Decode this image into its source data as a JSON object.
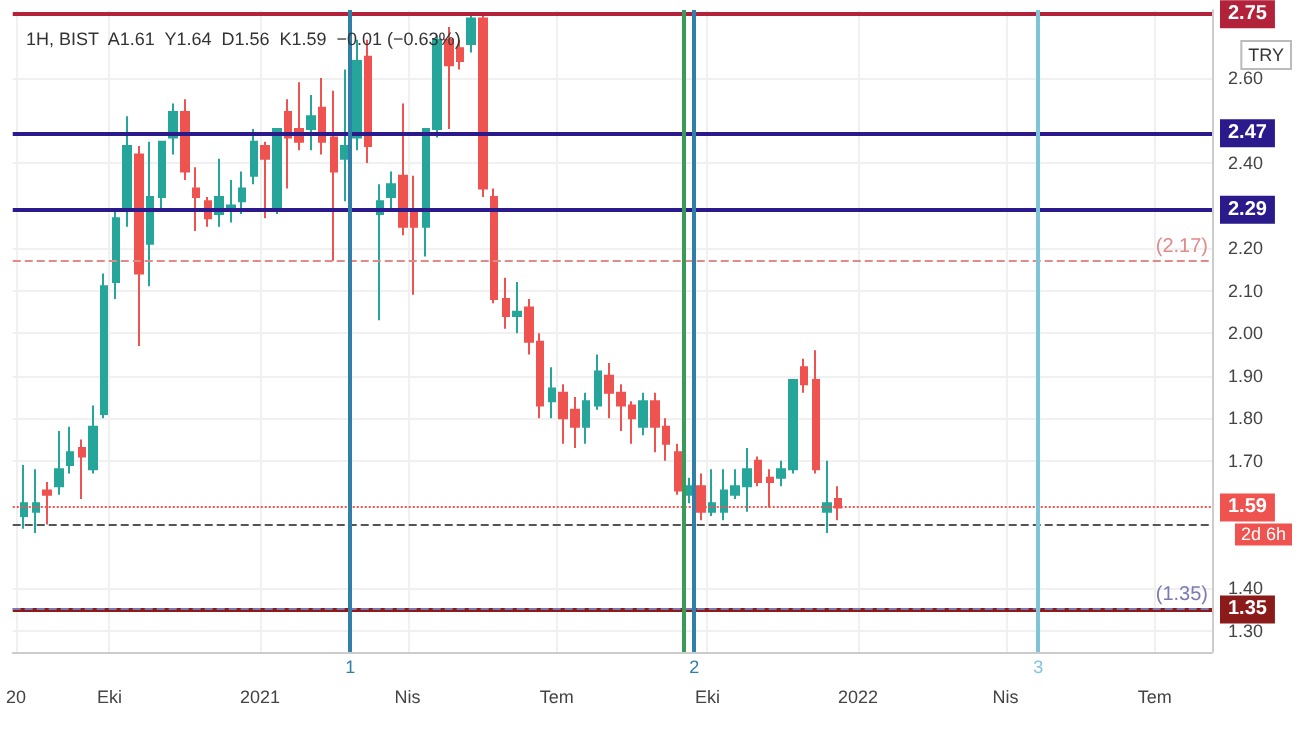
{
  "chart_data": {
    "type": "candlestick",
    "title": "1H, BIST  A1.61  Y1.64  D1.56  K1.59  −0.01 (−0.63%)",
    "x": [
      "2020-08-10",
      "2020-08-17",
      "2020-08-24",
      "2020-08-31",
      "2020-09-07",
      "2020-09-14",
      "2020-09-21",
      "2020-09-28",
      "2020-10-05",
      "2020-10-12",
      "2020-10-19",
      "2020-10-26",
      "2020-11-02",
      "2020-11-09",
      "2020-11-16",
      "2020-11-23",
      "2020-11-30",
      "2020-12-07",
      "2020-12-14",
      "2020-12-21",
      "2020-12-28",
      "2021-01-04",
      "2021-01-11",
      "2021-01-18",
      "2021-01-25",
      "2021-02-01",
      "2021-02-08",
      "2021-02-15",
      "2021-02-22",
      "2021-03-01",
      "2021-03-08",
      "2021-03-15",
      "2021-03-22",
      "2021-03-29",
      "2021-04-05",
      "2021-04-12",
      "2021-04-19",
      "2021-04-26",
      "2021-05-03",
      "2021-05-10",
      "2021-05-17",
      "2021-05-24",
      "2021-05-31",
      "2021-06-07",
      "2021-06-14",
      "2021-06-21",
      "2021-06-28",
      "2021-07-05",
      "2021-07-12",
      "2021-07-19",
      "2021-07-26",
      "2021-08-02",
      "2021-08-09",
      "2021-08-16",
      "2021-08-23",
      "2021-08-30",
      "2021-09-06",
      "2021-09-13",
      "2021-09-20",
      "2021-09-27",
      "2021-10-04",
      "2021-10-11",
      "2021-10-18",
      "2021-10-25",
      "2021-11-01",
      "2021-11-08",
      "2021-11-15",
      "2021-11-22",
      "2021-11-29",
      "2021-12-06",
      "2021-12-13",
      "2021-12-20"
    ],
    "ohlc": [
      [
        1.57,
        1.69,
        1.54,
        1.6
      ],
      [
        1.58,
        1.68,
        1.53,
        1.6
      ],
      [
        1.63,
        1.65,
        1.55,
        1.62
      ],
      [
        1.64,
        1.77,
        1.62,
        1.68
      ],
      [
        1.69,
        1.78,
        1.67,
        1.72
      ],
      [
        1.73,
        1.75,
        1.61,
        1.71
      ],
      [
        1.68,
        1.83,
        1.67,
        1.78
      ],
      [
        1.81,
        2.14,
        1.8,
        2.11
      ],
      [
        2.12,
        2.29,
        2.08,
        2.27
      ],
      [
        2.29,
        2.51,
        2.25,
        2.44
      ],
      [
        2.42,
        2.44,
        1.97,
        2.14
      ],
      [
        2.21,
        2.45,
        2.11,
        2.32
      ],
      [
        2.32,
        2.45,
        2.29,
        2.45
      ],
      [
        2.46,
        2.54,
        2.42,
        2.52
      ],
      [
        2.52,
        2.55,
        2.36,
        2.38
      ],
      [
        2.34,
        2.39,
        2.24,
        2.32
      ],
      [
        2.31,
        2.32,
        2.25,
        2.27
      ],
      [
        2.28,
        2.41,
        2.25,
        2.32
      ],
      [
        2.29,
        2.36,
        2.26,
        2.3
      ],
      [
        2.31,
        2.38,
        2.28,
        2.34
      ],
      [
        2.37,
        2.48,
        2.35,
        2.45
      ],
      [
        2.44,
        2.45,
        2.27,
        2.41
      ],
      [
        2.29,
        2.48,
        2.28,
        2.48
      ],
      [
        2.52,
        2.55,
        2.34,
        2.46
      ],
      [
        2.48,
        2.59,
        2.43,
        2.45
      ],
      [
        2.48,
        2.56,
        2.43,
        2.51
      ],
      [
        2.53,
        2.6,
        2.42,
        2.45
      ],
      [
        2.46,
        2.57,
        2.17,
        2.38
      ],
      [
        2.41,
        2.62,
        2.31,
        2.44
      ],
      [
        2.46,
        2.69,
        2.43,
        2.64
      ],
      [
        2.65,
        2.69,
        2.4,
        2.44
      ],
      [
        2.28,
        2.35,
        2.03,
        2.31
      ],
      [
        2.32,
        2.38,
        2.29,
        2.35
      ],
      [
        2.37,
        2.54,
        2.23,
        2.25
      ],
      [
        2.29,
        2.37,
        2.09,
        2.25
      ],
      [
        2.25,
        2.48,
        2.18,
        2.48
      ],
      [
        2.48,
        2.7,
        2.46,
        2.69
      ],
      [
        2.69,
        2.72,
        2.48,
        2.63
      ],
      [
        2.67,
        2.69,
        2.62,
        2.64
      ],
      [
        2.68,
        2.75,
        2.66,
        2.74
      ],
      [
        2.74,
        2.75,
        2.32,
        2.34
      ],
      [
        2.32,
        2.34,
        2.07,
        2.08
      ],
      [
        2.08,
        2.13,
        2.01,
        2.04
      ],
      [
        2.04,
        2.12,
        2.0,
        2.05
      ],
      [
        2.06,
        2.08,
        1.95,
        1.98
      ],
      [
        1.98,
        2.0,
        1.8,
        1.83
      ],
      [
        1.84,
        1.92,
        1.8,
        1.87
      ],
      [
        1.86,
        1.88,
        1.74,
        1.8
      ],
      [
        1.82,
        1.85,
        1.73,
        1.78
      ],
      [
        1.78,
        1.86,
        1.74,
        1.84
      ],
      [
        1.83,
        1.95,
        1.82,
        1.91
      ],
      [
        1.9,
        1.93,
        1.8,
        1.86
      ],
      [
        1.86,
        1.88,
        1.77,
        1.83
      ],
      [
        1.83,
        1.84,
        1.74,
        1.8
      ],
      [
        1.78,
        1.86,
        1.76,
        1.84
      ],
      [
        1.84,
        1.86,
        1.72,
        1.78
      ],
      [
        1.78,
        1.8,
        1.7,
        1.74
      ],
      [
        1.72,
        1.74,
        1.62,
        1.63
      ],
      [
        1.62,
        1.66,
        1.6,
        1.64
      ],
      [
        1.64,
        1.67,
        1.56,
        1.58
      ],
      [
        1.58,
        1.68,
        1.57,
        1.6
      ],
      [
        1.58,
        1.68,
        1.56,
        1.63
      ],
      [
        1.62,
        1.68,
        1.61,
        1.64
      ],
      [
        1.64,
        1.73,
        1.58,
        1.68
      ],
      [
        1.7,
        1.71,
        1.64,
        1.65
      ],
      [
        1.66,
        1.68,
        1.59,
        1.65
      ],
      [
        1.66,
        1.7,
        1.64,
        1.68
      ],
      [
        1.68,
        1.89,
        1.67,
        1.89
      ],
      [
        1.92,
        1.94,
        1.86,
        1.88
      ],
      [
        1.89,
        1.96,
        1.67,
        1.68
      ],
      [
        1.58,
        1.7,
        1.53,
        1.6
      ],
      [
        1.61,
        1.64,
        1.56,
        1.59
      ]
    ],
    "colors": [
      "#26a69a",
      "#26a69a",
      "#ef5350",
      "#26a69a",
      "#26a69a",
      "#ef5350",
      "#26a69a",
      "#26a69a",
      "#26a69a",
      "#26a69a",
      "#ef5350",
      "#26a69a",
      "#26a69a",
      "#26a69a",
      "#ef5350",
      "#ef5350",
      "#ef5350",
      "#26a69a",
      "#26a69a",
      "#26a69a",
      "#26a69a",
      "#ef5350",
      "#26a69a",
      "#ef5350",
      "#ef5350",
      "#26a69a",
      "#ef5350",
      "#ef5350",
      "#26a69a",
      "#26a69a",
      "#ef5350",
      "#26a69a",
      "#26a69a",
      "#ef5350",
      "#ef5350",
      "#26a69a",
      "#26a69a",
      "#ef5350",
      "#ef5350",
      "#26a69a",
      "#ef5350",
      "#ef5350",
      "#ef5350",
      "#26a69a",
      "#ef5350",
      "#ef5350",
      "#26a69a",
      "#ef5350",
      "#ef5350",
      "#26a69a",
      "#26a69a",
      "#ef5350",
      "#ef5350",
      "#ef5350",
      "#26a69a",
      "#ef5350",
      "#ef5350",
      "#ef5350",
      "#26a69a",
      "#ef5350",
      "#26a69a",
      "#26a69a",
      "#26a69a",
      "#26a69a",
      "#ef5350",
      "#ef5350",
      "#26a69a",
      "#26a69a",
      "#ef5350",
      "#ef5350",
      "#26a69a",
      "#ef5350"
    ],
    "xlim": [
      "2020-08-03",
      "2022-08-05"
    ],
    "xticks": [
      {
        "value": "2020-08-05",
        "label": "20"
      },
      {
        "value": "2020-10-01",
        "label": "Eki"
      },
      {
        "value": "2021-01-01",
        "label": "2021"
      },
      {
        "value": "2021-04-01",
        "label": "Nis"
      },
      {
        "value": "2021-07-01",
        "label": "Tem"
      },
      {
        "value": "2021-10-01",
        "label": "Eki"
      },
      {
        "value": "2022-01-01",
        "label": "2022"
      },
      {
        "value": "2022-04-01",
        "label": "Nis"
      },
      {
        "value": "2022-07-01",
        "label": "Tem"
      }
    ],
    "ylim": [
      1.25,
      2.76
    ],
    "yticks": [
      {
        "value": 1.3,
        "label": "1.30"
      },
      {
        "value": 1.4,
        "label": "1.40"
      },
      {
        "value": 1.7,
        "label": "1.70"
      },
      {
        "value": 1.8,
        "label": "1.80"
      },
      {
        "value": 1.9,
        "label": "1.90"
      },
      {
        "value": 2.0,
        "label": "2.00"
      },
      {
        "value": 2.1,
        "label": "2.10"
      },
      {
        "value": 2.2,
        "label": "2.20"
      },
      {
        "value": 2.4,
        "label": "2.40"
      },
      {
        "value": 2.6,
        "label": "2.60"
      }
    ],
    "ref_lines": [
      {
        "axis": "y",
        "value": 2.75,
        "label": "2.75",
        "color": "#b2223a"
      },
      {
        "axis": "y",
        "value": 2.47,
        "label": "2.47",
        "color": "#2a1a8c"
      },
      {
        "axis": "y",
        "value": 2.29,
        "label": "2.29",
        "color": "#2a1a8c"
      },
      {
        "axis": "y",
        "value": 2.17,
        "label": "(2.17)",
        "color": "#e08a8a",
        "line_style": "dashed"
      },
      {
        "axis": "y",
        "value": 1.59,
        "label": "1.59",
        "color": "#ef5350",
        "line_style": "dotted"
      },
      {
        "axis": "y",
        "value": 1.55,
        "label": null,
        "color": "#555555",
        "line_style": "dashed"
      },
      {
        "axis": "y",
        "value": 1.35,
        "label": "1.35",
        "color": "#8b1a1a"
      },
      {
        "axis": "y",
        "value": 1.35,
        "label": "(1.35)",
        "color": "#7a7ab0",
        "line_style": "dashed"
      },
      {
        "axis": "x",
        "value": "2021-02-25",
        "label": "1",
        "color": "#2f7fa8"
      },
      {
        "axis": "x",
        "value": "2021-09-16",
        "label": null,
        "color": "#3a9a5a"
      },
      {
        "axis": "x",
        "value": "2021-09-23",
        "label": "2",
        "color": "#2f7fa8"
      },
      {
        "axis": "x",
        "value": "2022-04-21",
        "label": "3",
        "color": "#7fc4d8"
      }
    ],
    "annotations": [
      "TRY",
      "2d 6h"
    ],
    "grid": true
  }
}
